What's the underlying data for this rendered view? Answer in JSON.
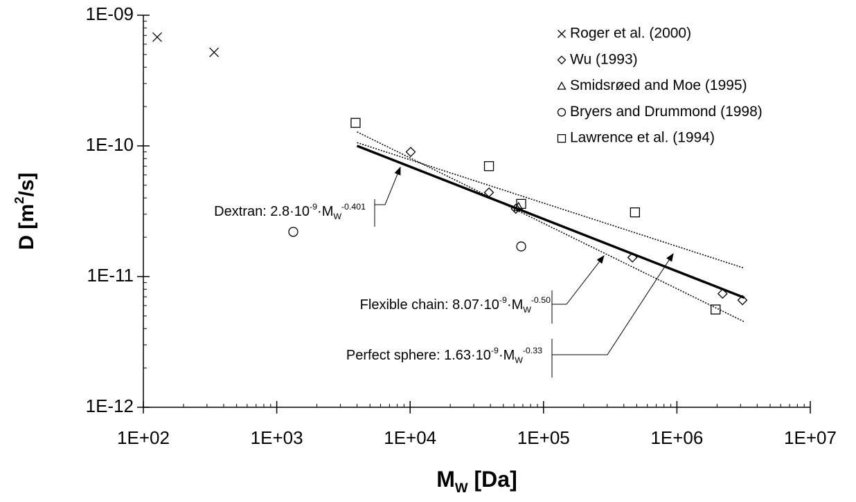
{
  "chart_data": {
    "type": "scatter",
    "x_label": [
      "M",
      "W",
      " [Da]"
    ],
    "y_label": [
      "D [m",
      "2",
      "/s]"
    ],
    "log_x": true,
    "log_y": true,
    "xlim": [
      100,
      10000000
    ],
    "ylim": [
      1e-12,
      1e-09
    ],
    "xticks": [
      {
        "value": 100,
        "label": "1E+02"
      },
      {
        "value": 1000,
        "label": "1E+03"
      },
      {
        "value": 10000,
        "label": "1E+04"
      },
      {
        "value": 100000,
        "label": "1E+05"
      },
      {
        "value": 1000000,
        "label": "1E+06"
      },
      {
        "value": 10000000,
        "label": "1E+07"
      }
    ],
    "yticks": [
      {
        "value": 1e-12,
        "label": "1E-12"
      },
      {
        "value": 1e-11,
        "label": "1E-11"
      },
      {
        "value": 1e-10,
        "label": "1E-10"
      },
      {
        "value": 1e-09,
        "label": "1E-09"
      }
    ],
    "legend": "top-right",
    "series": [
      {
        "name": "Roger et al. (2000)",
        "marker": "x",
        "color": "#000000",
        "x": [
          127,
          339
        ],
        "values": [
          6.8e-10,
          5.2e-10
        ]
      },
      {
        "name": "Wu (1993)",
        "marker": "diamond",
        "color": "#000000",
        "x": [
          10100,
          39000,
          62000,
          464000,
          2200000,
          3100000
        ],
        "values": [
          9e-11,
          4.4e-11,
          3.3e-11,
          1.4e-11,
          7.4e-12,
          6.6e-12
        ]
      },
      {
        "name": "Smidsrøed and Moe (1995)",
        "marker": "triangle",
        "color": "#000000",
        "x": [
          65000
        ],
        "values": [
          3.4e-11
        ]
      },
      {
        "name": "Bryers and Drummond (1998)",
        "marker": "circle",
        "color": "#000000",
        "x": [
          1330,
          68000
        ],
        "values": [
          2.2e-11,
          1.7e-11
        ]
      },
      {
        "name": "Lawrence et al. (1994)",
        "marker": "square",
        "color": "#000000",
        "x": [
          3900,
          39000,
          68000,
          485000,
          1950000
        ],
        "values": [
          1.5e-10,
          7e-11,
          3.6e-11,
          3.1e-11,
          5.6e-12
        ]
      }
    ],
    "fits": [
      {
        "label": [
          "Dextran: 2.8·10",
          "-9",
          "·M",
          "W",
          "-0.401"
        ],
        "style": "solid",
        "color": "#000000",
        "x": [
          4000,
          3200000
        ],
        "values": [
          1e-10,
          6.9e-12
        ]
      },
      {
        "label": [
          "Flexible chain: 8.07·10",
          "-9",
          "·M",
          "W",
          "-0.50"
        ],
        "style": "dotted",
        "color": "#000000",
        "x": [
          4000,
          3200000
        ],
        "values": [
          1.28e-10,
          4.51e-12
        ]
      },
      {
        "label": [
          "Perfect sphere: 1.63·10",
          "-9",
          "·M",
          "W",
          "-0.33"
        ],
        "style": "dotted",
        "color": "#000000",
        "x": [
          4000,
          3200000
        ],
        "values": [
          1.06e-10,
          1.16e-11
        ]
      }
    ]
  }
}
